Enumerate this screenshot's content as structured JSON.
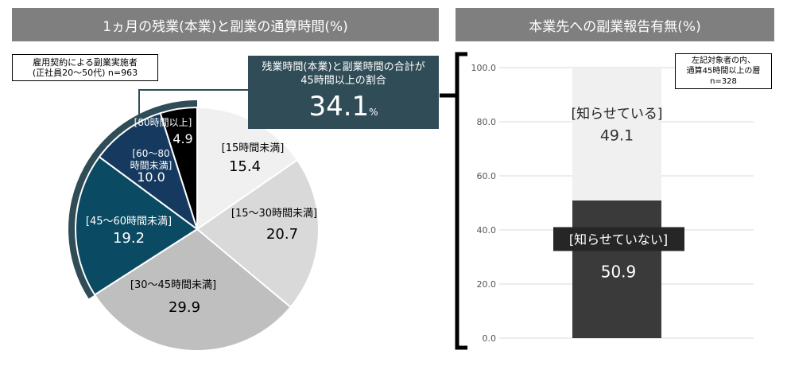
{
  "left": {
    "title": "1ヵ月の残業(本業)と副業の通算時間(%)",
    "note": [
      "雇用契約による副業実施者",
      "(正社員20～50代) n=963"
    ],
    "callout": {
      "text": [
        "残業時間(本業)と副業時間の合計が",
        "45時間以上の割合"
      ],
      "value": "34.1",
      "unit": "%"
    }
  },
  "right": {
    "title": "本業先への副業報告有無(%)",
    "note": [
      "左記対象者の内、",
      "通算45時間以上の層",
      "n=328"
    ]
  },
  "chart_data": [
    {
      "type": "pie",
      "start": "top",
      "direction": "clockwise",
      "categories": [
        "[15時間未満]",
        "[15～30時間未満]",
        "[30～45時間未満]",
        "[45～60時間未満]",
        "[60～80時間未満]",
        "[80時間以上]"
      ],
      "values": [
        15.4,
        20.7,
        29.9,
        19.2,
        10.0,
        4.9
      ],
      "colors": [
        "#f0f0f0",
        "#d9d9d9",
        "#bfbfbf",
        "#0b4a63",
        "#163a5f",
        "#000000"
      ],
      "highlight_color": "#2f4c57"
    },
    {
      "type": "bar",
      "stacked": true,
      "ylim": [
        0,
        100
      ],
      "yticks": [
        "0.0",
        "20.0",
        "40.0",
        "60.0",
        "80.0",
        "100.0"
      ],
      "grid": true,
      "series": [
        {
          "name": "[知らせていない]",
          "values": [
            50.9
          ],
          "color": "#3a3a3a"
        },
        {
          "name": "[知らせている]",
          "values": [
            49.1
          ],
          "color": "#f0f0f0"
        }
      ]
    }
  ]
}
